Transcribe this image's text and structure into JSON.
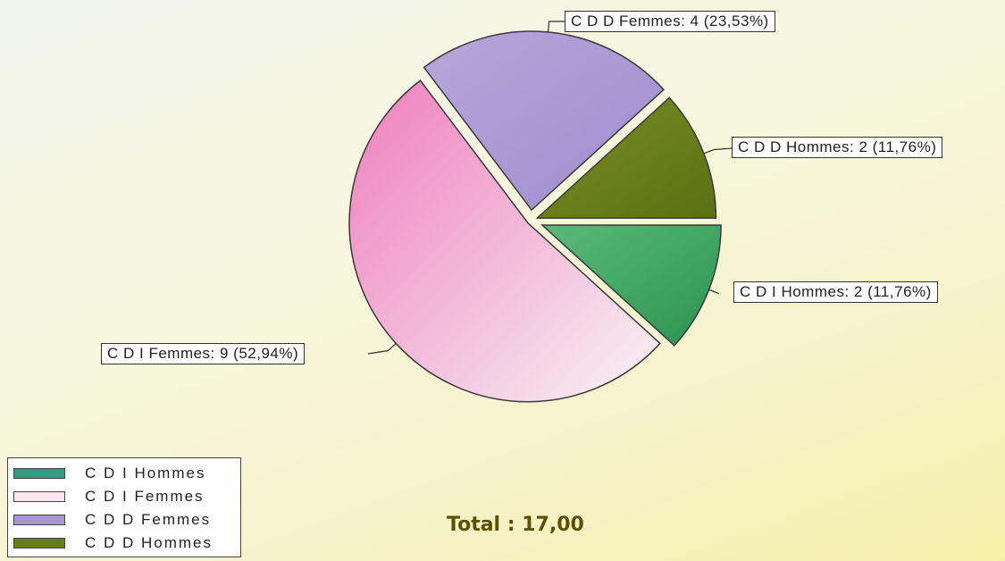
{
  "chart_data": {
    "type": "pie",
    "slices": [
      {
        "label": "C D I Hommes",
        "value": 2,
        "percent": 11.76,
        "callout": "C D I  Hommes: 2 (11,76%)",
        "color": "#2f9e57"
      },
      {
        "label": "C D I Femmes",
        "value": 9,
        "percent": 52.94,
        "callout": "C D I  Femmes: 9 (52,94%)",
        "color": "#ef8ec4"
      },
      {
        "label": "C D D Femmes",
        "value": 4,
        "percent": 23.53,
        "callout": "C D D  Femmes: 4 (23,53%)",
        "color": "#a896d2"
      },
      {
        "label": "C D D Hommes",
        "value": 2,
        "percent": 11.76,
        "callout": "C D D  Hommes: 2 (11,76%)",
        "color": "#667c18"
      }
    ],
    "legend": {
      "placement": "bottom-left",
      "entries": [
        {
          "label": "C D I  Hommes",
          "color": "#2f9e80"
        },
        {
          "label": "C D I  Femmes",
          "color": "#f4c4dc"
        },
        {
          "label": "C D D  Femmes",
          "color": "#a896d2"
        },
        {
          "label": "C D D  Hommes",
          "color": "#667c18"
        }
      ]
    },
    "total_text": "Total : 17,00"
  }
}
